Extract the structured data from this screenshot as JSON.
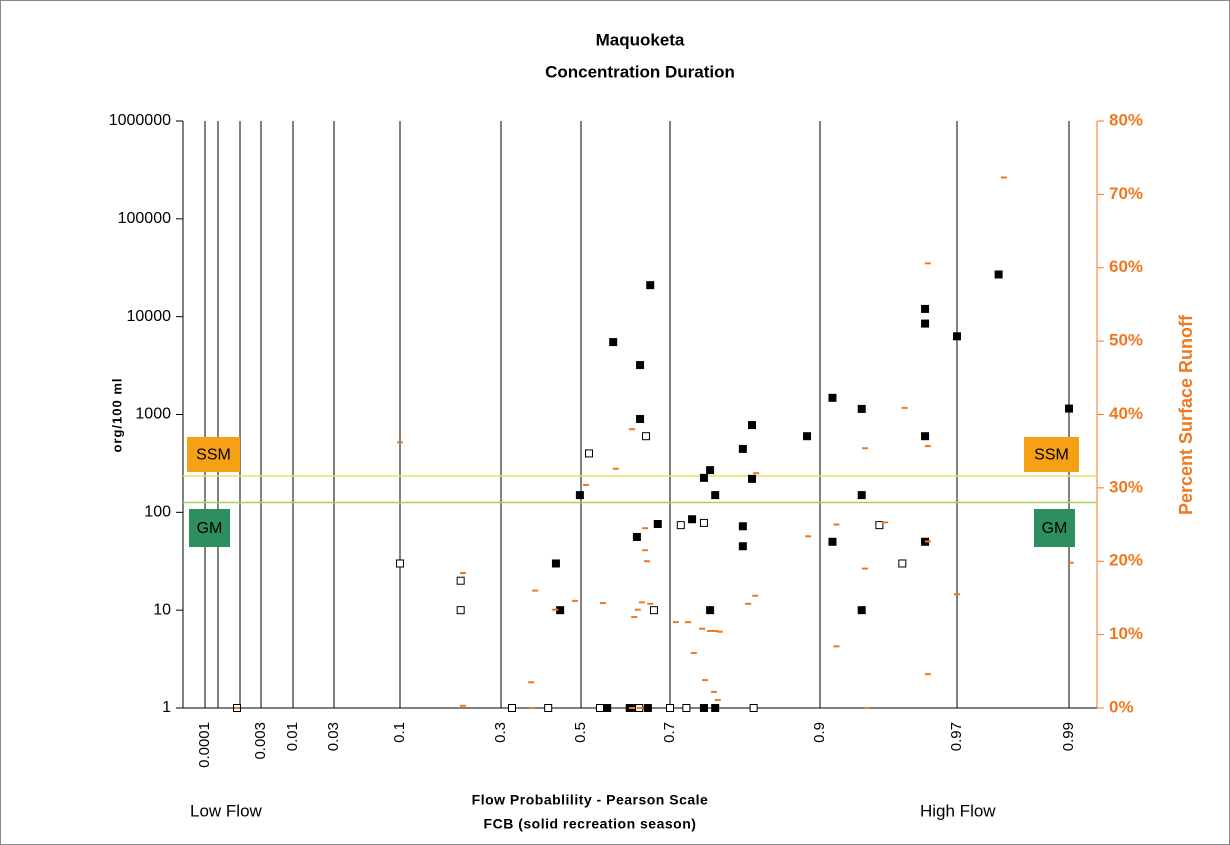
{
  "chart_data": {
    "type": "scatter",
    "title": "Maquoketa",
    "subtitle": "Concentration Duration",
    "ylabel": "org/100 ml",
    "y2label": "Percent Surface Runoff",
    "xlabel": "Flow Probablility - Pearson Scale",
    "xlabel2": "FCB (solid recreation season)",
    "annotations": [
      "Low Flow",
      "High Flow"
    ],
    "xscale": "pearson",
    "yscale": "log",
    "xlim": [
      5e-05,
      0.995
    ],
    "ylim": [
      1,
      1000000
    ],
    "y2lim": [
      0,
      80
    ],
    "xticks": [
      {
        "value": 0.0001,
        "label": "0.0001"
      },
      {
        "value": 0.0003,
        "label": null
      },
      {
        "value": 0.001,
        "label": null
      },
      {
        "value": 0.003,
        "label": "0.003"
      },
      {
        "value": 0.01,
        "label": "0.01"
      },
      {
        "value": 0.03,
        "label": "0.03"
      },
      {
        "value": 0.1,
        "label": "0.1"
      },
      {
        "value": 0.3,
        "label": "0.3"
      },
      {
        "value": 0.5,
        "label": "0.5"
      },
      {
        "value": 0.7,
        "label": "0.7"
      },
      {
        "value": 0.9,
        "label": "0.9"
      },
      {
        "value": 0.97,
        "label": "0.97"
      },
      {
        "value": 0.99,
        "label": "0.99"
      }
    ],
    "yticks": [
      1,
      10,
      100,
      1000,
      10000,
      100000,
      1000000
    ],
    "y2ticks": [
      {
        "value": 0,
        "label": "0%"
      },
      {
        "value": 10,
        "label": "10%"
      },
      {
        "value": 20,
        "label": "20%"
      },
      {
        "value": 30,
        "label": "30%"
      },
      {
        "value": 40,
        "label": "40%"
      },
      {
        "value": 50,
        "label": "50%"
      },
      {
        "value": 60,
        "label": "60%"
      },
      {
        "value": 70,
        "label": "70%"
      },
      {
        "value": 80,
        "label": "80%"
      }
    ],
    "grid": true,
    "reference_lines": [
      {
        "label": "SSM",
        "value": 235,
        "color": "#e4e45e",
        "box_color": "#f5a015"
      },
      {
        "label": "GM",
        "value": 126,
        "color": "#a9d05a",
        "box_color": "#2e8f5e"
      }
    ],
    "series": [
      {
        "marker": "filled-square",
        "color": "#000000",
        "x": [
          0.434,
          0.445,
          0.497,
          0.562,
          0.576,
          0.614,
          0.632,
          0.654,
          0.637,
          0.637,
          0.659,
          0.63,
          0.675,
          0.74,
          0.76,
          0.77,
          0.778,
          0.77,
          0.76,
          0.778,
          0.818,
          0.818,
          0.818,
          0.83,
          0.83,
          0.889,
          0.91,
          0.91,
          0.93,
          0.93,
          0.93,
          0.96,
          0.96,
          0.96,
          0.96,
          0.97,
          0.98,
          0.99
        ],
        "values": [
          30,
          10,
          150,
          1,
          5500,
          1,
          1,
          1,
          3200,
          900,
          21000,
          56,
          76,
          85,
          225,
          270,
          150,
          10,
          1,
          1,
          445,
          72,
          45,
          780,
          220,
          600,
          1480,
          50,
          1140,
          150,
          10,
          12000,
          8500,
          600,
          50,
          6300,
          27000,
          1150
        ]
      },
      {
        "marker": "open-square",
        "color": "#000000",
        "x": [
          0.00085,
          0.1,
          0.2,
          0.2,
          0.325,
          0.414,
          0.545,
          0.635,
          0.7,
          0.73,
          0.832,
          0.519,
          0.65,
          0.72,
          0.76,
          0.667,
          0.94,
          0.951
        ],
        "values": [
          1,
          30,
          20,
          10,
          1,
          1,
          1,
          1,
          1,
          1,
          1,
          400,
          600,
          74,
          78,
          10,
          74,
          30
        ]
      },
      {
        "marker": "dash",
        "color": "#f07820",
        "axis": "y2",
        "x": [
          0.00085,
          0.1,
          0.205,
          0.205,
          0.371,
          0.381,
          0.432,
          0.373,
          0.484,
          0.512,
          0.552,
          0.582,
          0.619,
          0.624,
          0.632,
          0.648,
          0.648,
          0.652,
          0.641,
          0.659,
          0.619,
          0.637,
          0.711,
          0.733,
          0.743,
          0.757,
          0.762,
          0.77,
          0.778,
          0.776,
          0.782,
          0.785,
          0.825,
          0.834,
          0.835,
          0.89,
          0.913,
          0.913,
          0.932,
          0.932,
          0.933,
          0.943,
          0.952,
          0.961,
          0.961,
          0.961,
          0.961,
          0.97,
          0.981,
          0.9904
        ],
        "values": [
          0,
          36.2,
          18.4,
          0.3,
          3.5,
          16,
          13.4,
          0,
          14.6,
          30.4,
          14.3,
          32.6,
          38,
          12.4,
          13.4,
          24.5,
          21.5,
          20,
          14.4,
          14.2,
          0,
          0,
          11.7,
          11.7,
          7.5,
          10.8,
          3.8,
          10.5,
          10.5,
          2.2,
          1.1,
          10.4,
          14.2,
          15.3,
          32,
          23.4,
          8.4,
          25,
          35.4,
          19,
          0,
          25.3,
          40.9,
          60.6,
          35.7,
          22.7,
          4.6,
          15.5,
          72.3,
          19.8
        ]
      }
    ]
  }
}
